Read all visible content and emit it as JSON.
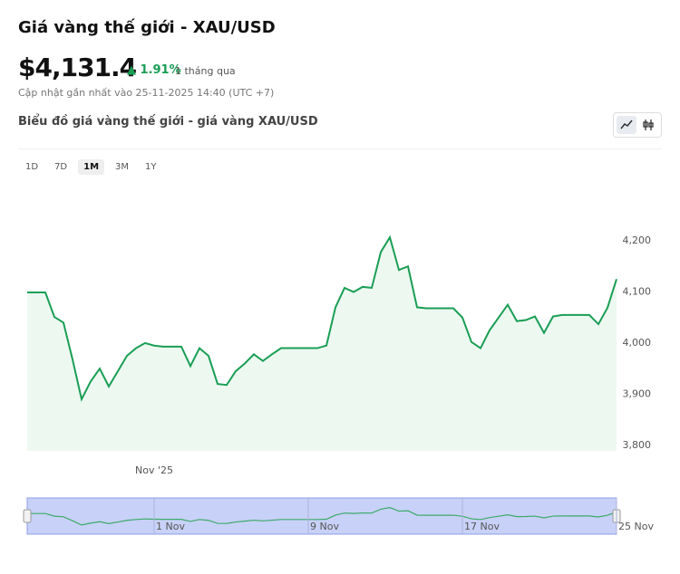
{
  "header": {
    "title": "Giá vàng thế giới - XAU/USD",
    "price": "$4,131.4",
    "change": "1.91%",
    "period": "1 tháng qua",
    "updated": "Cập nhật gần nhất vào 25-11-2025 14:40 (UTC +7)",
    "chart_title": "Biểu đồ giá vàng thế giới - giá vàng XAU/USD"
  },
  "ranges": [
    "1D",
    "7D",
    "1M",
    "3M",
    "1Y"
  ],
  "active_range": "1M",
  "chart_data": {
    "type": "line",
    "color": "#1a9e55",
    "fill": "#edf8f1",
    "categories": [
      null,
      null,
      null,
      null,
      null,
      null,
      null,
      null,
      null,
      null,
      null,
      null,
      null,
      null,
      "Nov '25",
      null,
      null,
      null,
      null,
      null,
      null,
      null,
      null,
      null,
      null,
      null,
      null,
      null,
      null,
      null,
      null,
      null,
      null,
      null,
      null,
      null,
      null,
      null,
      null,
      null,
      null,
      null,
      null,
      null,
      null,
      null,
      null,
      null,
      null,
      null,
      null,
      null,
      null,
      null,
      null,
      null,
      null,
      null,
      null,
      null,
      null,
      null,
      null,
      null,
      null,
      null
    ],
    "values": [
      4099,
      4099,
      4099,
      4051,
      4040,
      3968,
      3890,
      3925,
      3950,
      3915,
      3945,
      3975,
      3990,
      4000,
      3995,
      3993,
      3993,
      3993,
      3955,
      3990,
      3975,
      3920,
      3918,
      3945,
      3960,
      3978,
      3965,
      3978,
      3990,
      3990,
      3990,
      3990,
      3990,
      3995,
      4070,
      4108,
      4100,
      4110,
      4108,
      4178,
      4207,
      4143,
      4150,
      4070,
      4068,
      4068,
      4068,
      4068,
      4050,
      4002,
      3990,
      4025,
      4050,
      4075,
      4043,
      4045,
      4052,
      4020,
      4052,
      4055,
      4055,
      4055,
      4055,
      4037,
      4069,
      4125
    ],
    "ylim": [
      3789,
      4317
    ],
    "yticks": [
      {
        "value": 3800,
        "label": "3,800"
      },
      {
        "value": 3900,
        "label": "3,900"
      },
      {
        "value": 4000,
        "label": "4,000"
      },
      {
        "value": 4100,
        "label": "4,100"
      },
      {
        "value": 4200,
        "label": "4,200"
      }
    ],
    "navigator": {
      "categories": [
        null,
        null,
        null,
        null,
        null,
        null,
        null,
        null,
        null,
        null,
        null,
        null,
        null,
        null,
        "1 Nov",
        null,
        null,
        null,
        null,
        null,
        null,
        null,
        null,
        null,
        null,
        null,
        null,
        null,
        null,
        null,
        null,
        "9 Nov",
        null,
        null,
        null,
        null,
        null,
        null,
        null,
        null,
        null,
        null,
        null,
        null,
        null,
        null,
        null,
        null,
        "17 Nov",
        null,
        null,
        null,
        null,
        null,
        null,
        null,
        null,
        null,
        null,
        null,
        null,
        null,
        null,
        null,
        null,
        "25 Nov"
      ]
    }
  }
}
